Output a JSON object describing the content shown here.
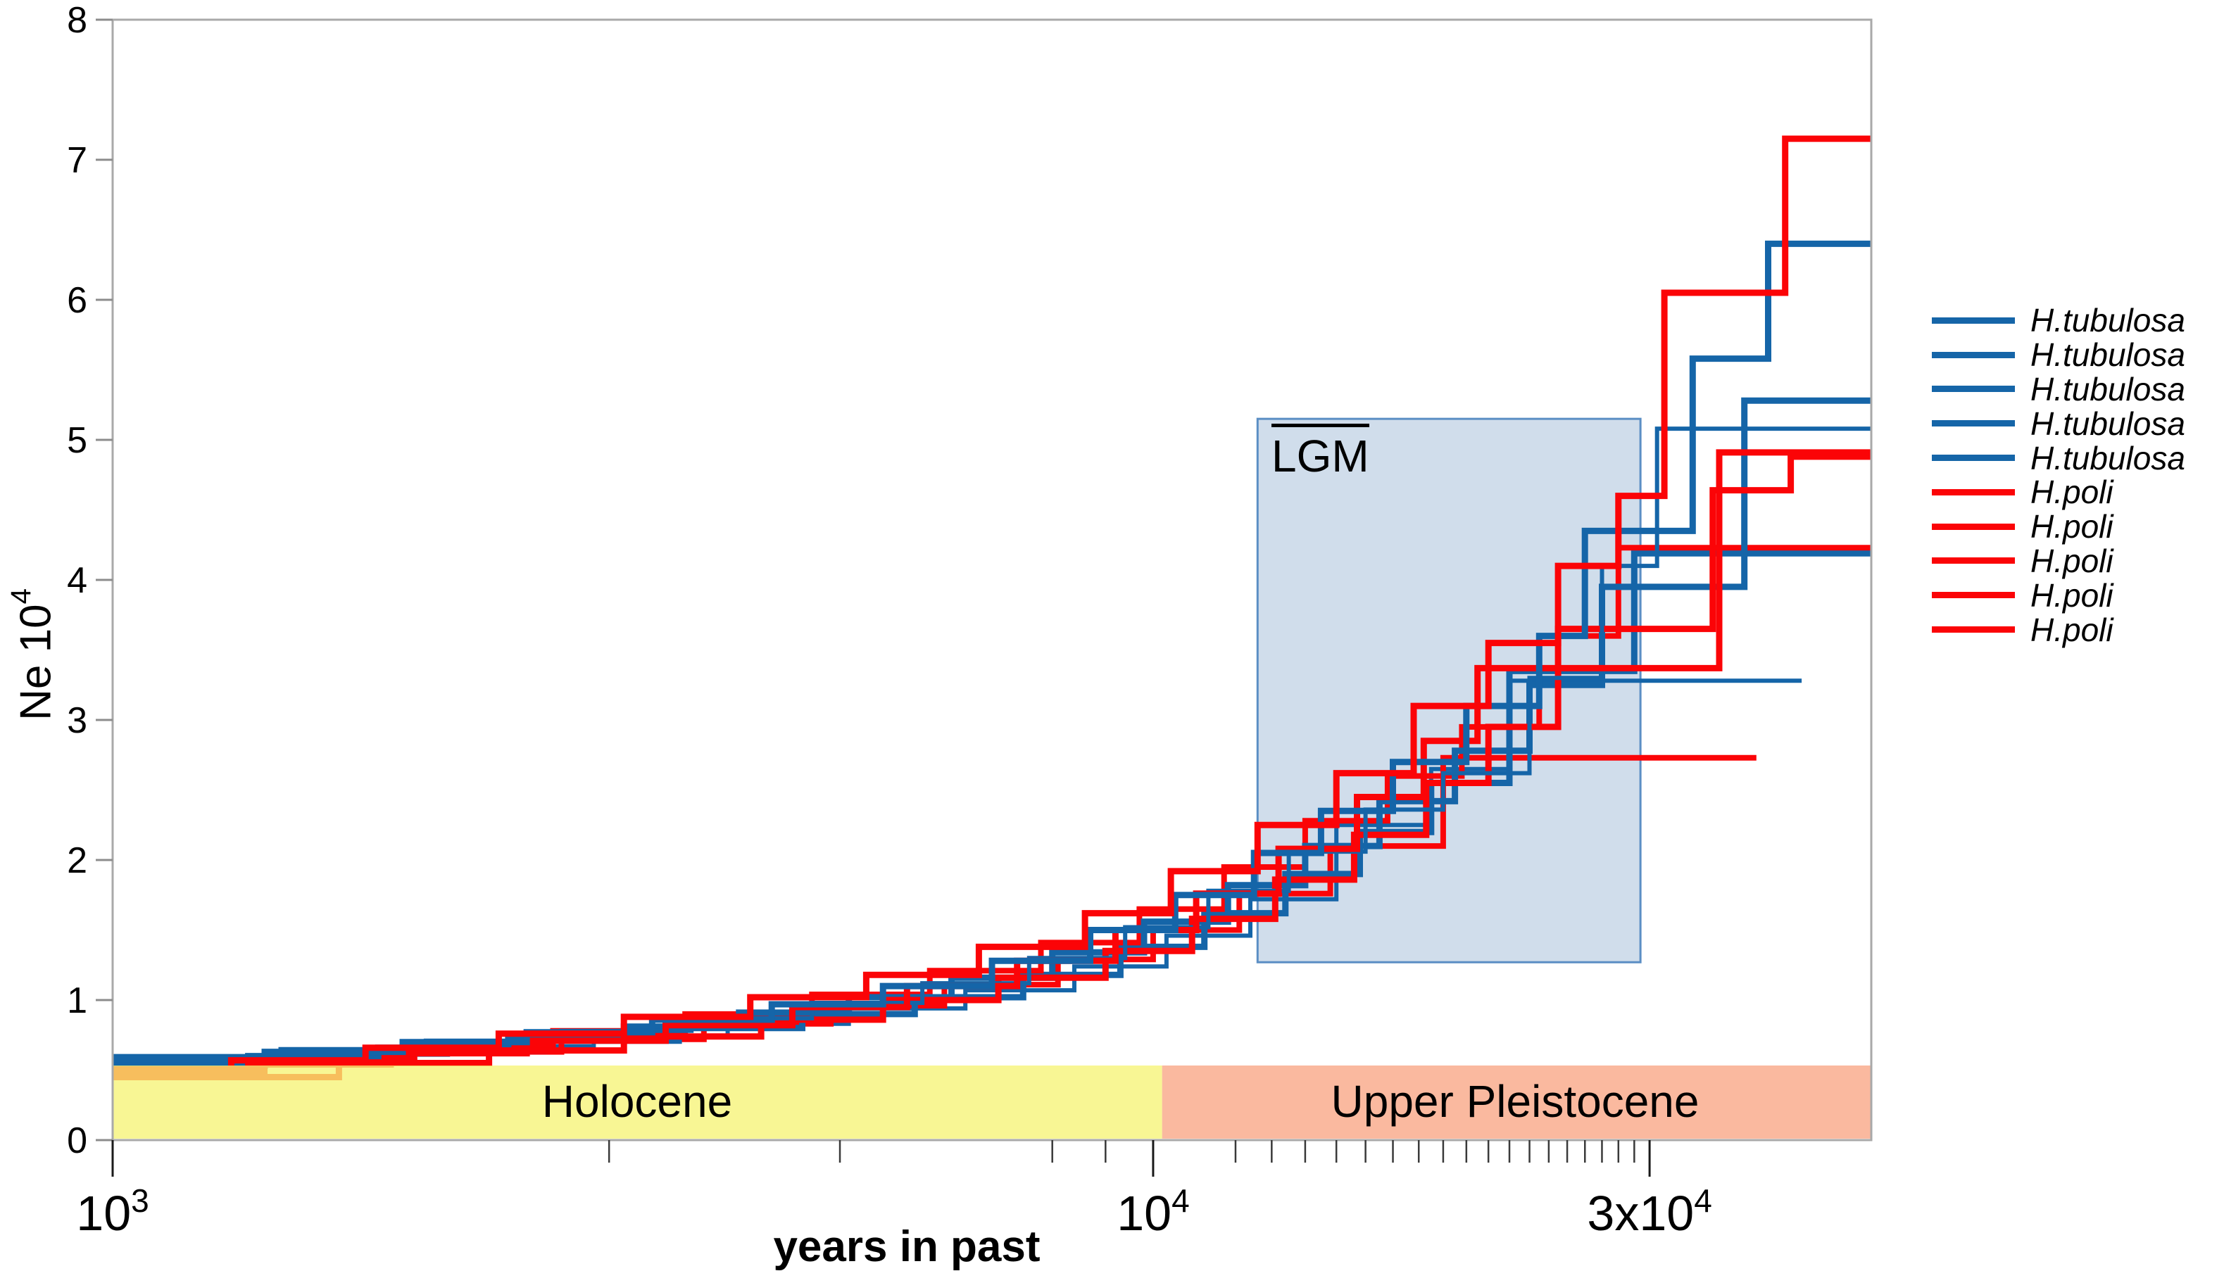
{
  "labels": {
    "xlabel": "years in past",
    "ylabel_main": "Ne 10",
    "ylabel_sup": "4"
  },
  "colors": {
    "tubulosa_blue": "#1565a8",
    "poli_red": "#fb0407",
    "holocene_band": "rgba(246,243,118,0.78)",
    "pleistocene_band": "rgba(248,158,122,0.72)",
    "lgm_fill": "rgba(205,219,234,0.95)",
    "lgm_border": "#5b8ec4",
    "frame_gray": "#a9a9a9"
  },
  "chart_data": {
    "type": "line",
    "subtype": "step-skyline",
    "title": "",
    "xlabel": "years in past",
    "ylabel": "Ne 10^4",
    "x_scale": "log",
    "x_range_years": [
      1000,
      49000
    ],
    "ylim": [
      0,
      8
    ],
    "grid": false,
    "legend_position": "right",
    "y_ticks": [
      0,
      1,
      2,
      3,
      4,
      5,
      6,
      7,
      8
    ],
    "x_major_ticks": [
      {
        "value": 1000,
        "base": "10",
        "sup": "3"
      },
      {
        "value": 10000,
        "base": "10",
        "sup": "4"
      },
      {
        "value": 30000,
        "base": "3x10",
        "sup": "4"
      }
    ],
    "x_minor_ticks": [
      3000,
      5000,
      8000,
      9000,
      12000,
      13000,
      14000,
      15000,
      16000,
      17000,
      18000,
      19000,
      20000,
      21000,
      22000,
      23000,
      24000,
      25000,
      26000,
      27000,
      28000,
      29000
    ],
    "epochs": [
      {
        "name": "Holocene",
        "from_years": 1000,
        "to_years": 10200,
        "color_key": "holocene_band"
      },
      {
        "name": "Upper Pleistocene",
        "from_years": 10200,
        "to_years": 49000,
        "color_key": "pleistocene_band"
      }
    ],
    "lgm_box": {
      "label": "LGM",
      "from_years": 12600,
      "to_years": 29400,
      "ne_from": 1.27,
      "ne_to": 5.15
    },
    "legend": [
      {
        "label": "H.tubulosa",
        "color_key": "tubulosa_blue"
      },
      {
        "label": "H.tubulosa",
        "color_key": "tubulosa_blue"
      },
      {
        "label": "H.tubulosa",
        "color_key": "tubulosa_blue"
      },
      {
        "label": "H.tubulosa",
        "color_key": "tubulosa_blue"
      },
      {
        "label": "H.tubulosa",
        "color_key": "tubulosa_blue"
      },
      {
        "label": "H.poli",
        "color_key": "poli_red"
      },
      {
        "label": "H.poli",
        "color_key": "poli_red"
      },
      {
        "label": "H.poli",
        "color_key": "poli_red"
      },
      {
        "label": "H.poli",
        "color_key": "poli_red"
      },
      {
        "label": "H.poli",
        "color_key": "poli_red"
      }
    ],
    "series": [
      {
        "name": "H.tubulosa-5",
        "species": "H.tubulosa",
        "color_key": "tubulosa_blue",
        "width": 6,
        "points": [
          [
            1000,
            0.56
          ],
          [
            1500,
            0.61
          ],
          [
            2100,
            0.67
          ],
          [
            2900,
            0.74
          ],
          [
            3900,
            0.83
          ],
          [
            5100,
            0.94
          ],
          [
            6600,
            1.07
          ],
          [
            8400,
            1.24
          ],
          [
            10300,
            1.46
          ],
          [
            12400,
            1.72
          ],
          [
            15000,
            2.25
          ],
          [
            18500,
            2.65
          ],
          [
            22000,
            3.28
          ],
          [
            42000,
            3.28
          ]
        ]
      },
      {
        "name": "H.poli-4",
        "species": "H.poli",
        "color_key": "poli_red",
        "width": 8,
        "points": [
          [
            1000,
            0.49
          ],
          [
            1400,
            0.55
          ],
          [
            1950,
            0.63
          ],
          [
            2700,
            0.72
          ],
          [
            3700,
            0.83
          ],
          [
            4900,
            0.96
          ],
          [
            6300,
            1.11
          ],
          [
            8100,
            1.29
          ],
          [
            10000,
            1.5
          ],
          [
            12100,
            1.76
          ],
          [
            14800,
            2.1
          ],
          [
            19000,
            2.73
          ],
          [
            38000,
            2.73
          ]
        ]
      },
      {
        "name": "H.tubulosa-4",
        "species": "H.tubulosa",
        "color_key": "tubulosa_blue",
        "width": 9,
        "points": [
          [
            1000,
            0.53
          ],
          [
            1400,
            0.58
          ],
          [
            1900,
            0.64
          ],
          [
            2600,
            0.71
          ],
          [
            3500,
            0.8
          ],
          [
            4600,
            0.9
          ],
          [
            5900,
            1.02
          ],
          [
            7500,
            1.18
          ],
          [
            9300,
            1.38
          ],
          [
            11200,
            1.62
          ],
          [
            13400,
            1.9
          ],
          [
            15800,
            2.2
          ],
          [
            18500,
            2.55
          ],
          [
            22000,
            3.35
          ],
          [
            29000,
            4.19
          ],
          [
            49000,
            4.19
          ]
        ]
      },
      {
        "name": "H.poli-3",
        "species": "H.poli",
        "color_key": "poli_red",
        "width": 8,
        "points": [
          [
            1000,
            0.52
          ],
          [
            1400,
            0.59
          ],
          [
            1950,
            0.68
          ],
          [
            2650,
            0.78
          ],
          [
            3550,
            0.9
          ],
          [
            4700,
            1.04
          ],
          [
            6100,
            1.21
          ],
          [
            7800,
            1.41
          ],
          [
            9700,
            1.65
          ],
          [
            11700,
            1.95
          ],
          [
            14000,
            2.28
          ],
          [
            16800,
            2.6
          ],
          [
            19800,
            2.95
          ],
          [
            23500,
            3.6
          ],
          [
            28000,
            4.23
          ],
          [
            49000,
            4.23
          ]
        ]
      },
      {
        "name": "H.tubulosa-2",
        "species": "H.tubulosa",
        "color_key": "tubulosa_blue",
        "width": 9,
        "points": [
          [
            1000,
            0.55
          ],
          [
            1350,
            0.6
          ],
          [
            1800,
            0.66
          ],
          [
            2400,
            0.73
          ],
          [
            3100,
            0.81
          ],
          [
            4000,
            0.91
          ],
          [
            5100,
            1.02
          ],
          [
            6400,
            1.16
          ],
          [
            8000,
            1.34
          ],
          [
            9800,
            1.56
          ],
          [
            11800,
            1.82
          ],
          [
            14000,
            2.1
          ],
          [
            16500,
            2.42
          ],
          [
            19500,
            2.78
          ],
          [
            23000,
            3.25
          ],
          [
            27000,
            3.95
          ],
          [
            37000,
            5.28
          ],
          [
            49000,
            5.28
          ]
        ]
      },
      {
        "name": "H.poli-5",
        "species": "H.poli",
        "color_key": "poli_red",
        "width": 9,
        "points": [
          [
            1000,
            0.45
          ],
          [
            1650,
            0.55
          ],
          [
            2300,
            0.64
          ],
          [
            3100,
            0.74
          ],
          [
            4200,
            0.86
          ],
          [
            5500,
            1.0
          ],
          [
            7100,
            1.16
          ],
          [
            9000,
            1.35
          ],
          [
            10900,
            1.58
          ],
          [
            13100,
            1.86
          ],
          [
            15600,
            2.18
          ],
          [
            18300,
            2.55
          ],
          [
            21000,
            2.95
          ],
          [
            24500,
            3.65
          ],
          [
            34500,
            4.64
          ],
          [
            41000,
            4.88
          ],
          [
            49000,
            4.88
          ]
        ]
      },
      {
        "name": "H.tubulosa-3",
        "species": "H.tubulosa",
        "color_key": "tubulosa_blue",
        "width": 6,
        "points": [
          [
            1000,
            0.6
          ],
          [
            1450,
            0.65
          ],
          [
            2000,
            0.71
          ],
          [
            2700,
            0.78
          ],
          [
            3600,
            0.87
          ],
          [
            4700,
            0.98
          ],
          [
            6000,
            1.12
          ],
          [
            7600,
            1.3
          ],
          [
            9400,
            1.52
          ],
          [
            11300,
            1.78
          ],
          [
            13500,
            2.06
          ],
          [
            16000,
            2.36
          ],
          [
            19000,
            2.62
          ],
          [
            23000,
            3.3
          ],
          [
            27000,
            4.1
          ],
          [
            30500,
            5.08
          ],
          [
            49000,
            5.08
          ]
        ]
      },
      {
        "name": "H.poli-2",
        "species": "H.poli",
        "color_key": "poli_red",
        "width": 9,
        "points": [
          [
            1000,
            0.47
          ],
          [
            1350,
            0.54
          ],
          [
            1850,
            0.62
          ],
          [
            2500,
            0.71
          ],
          [
            3400,
            0.82
          ],
          [
            4500,
            0.95
          ],
          [
            5800,
            1.1
          ],
          [
            7400,
            1.28
          ],
          [
            9200,
            1.5
          ],
          [
            11000,
            1.76
          ],
          [
            13200,
            2.08
          ],
          [
            15700,
            2.45
          ],
          [
            18200,
            2.85
          ],
          [
            20500,
            3.37
          ],
          [
            35000,
            4.91
          ],
          [
            49000,
            4.91
          ]
        ]
      },
      {
        "name": "H.tubulosa-1",
        "species": "H.tubulosa",
        "color_key": "tubulosa_blue",
        "width": 9,
        "points": [
          [
            1000,
            0.58
          ],
          [
            1400,
            0.63
          ],
          [
            1900,
            0.7
          ],
          [
            2500,
            0.77
          ],
          [
            3300,
            0.86
          ],
          [
            4300,
            0.97
          ],
          [
            5500,
            1.1
          ],
          [
            7000,
            1.28
          ],
          [
            8700,
            1.5
          ],
          [
            10500,
            1.75
          ],
          [
            12500,
            2.05
          ],
          [
            14500,
            2.35
          ],
          [
            17000,
            2.7
          ],
          [
            20000,
            3.1
          ],
          [
            23500,
            3.6
          ],
          [
            26000,
            4.35
          ],
          [
            33000,
            5.58
          ],
          [
            39000,
            6.4
          ],
          [
            49000,
            6.4
          ]
        ]
      },
      {
        "name": "H.poli-1",
        "species": "H.poli",
        "color_key": "poli_red",
        "width": 9,
        "points": [
          [
            1000,
            0.5
          ],
          [
            1300,
            0.57
          ],
          [
            1750,
            0.66
          ],
          [
            2350,
            0.76
          ],
          [
            3100,
            0.88
          ],
          [
            4100,
            1.02
          ],
          [
            5300,
            1.18
          ],
          [
            6800,
            1.38
          ],
          [
            8600,
            1.62
          ],
          [
            10400,
            1.92
          ],
          [
            12600,
            2.25
          ],
          [
            15000,
            2.62
          ],
          [
            17800,
            3.1
          ],
          [
            21000,
            3.55
          ],
          [
            24500,
            4.1
          ],
          [
            28000,
            4.6
          ],
          [
            31000,
            6.05
          ],
          [
            40500,
            7.15
          ],
          [
            49000,
            7.15
          ]
        ]
      }
    ]
  }
}
